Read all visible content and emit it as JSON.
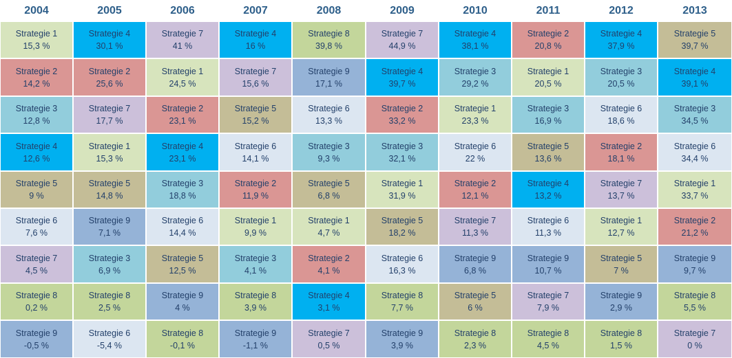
{
  "chart_data": {
    "type": "table",
    "years": [
      "2004",
      "2005",
      "2006",
      "2007",
      "2008",
      "2009",
      "2010",
      "2011",
      "2012",
      "2013"
    ],
    "strategy_colors": {
      "Strategie 1": "#d7e4bd",
      "Strategie 2": "#da9694",
      "Strategie 3": "#92cddc",
      "Strategie 4": "#00b0f0",
      "Strategie 5": "#c4bd97",
      "Strategie 6": "#dce6f1",
      "Strategie 7": "#ccc0da",
      "Strategie 8": "#c3d69b",
      "Strategie 9": "#95b3d7"
    },
    "columns": [
      [
        {
          "name": "Strategie 1",
          "value": "15,3 %"
        },
        {
          "name": "Strategie 2",
          "value": "14,2 %"
        },
        {
          "name": "Strategie 3",
          "value": "12,8 %"
        },
        {
          "name": "Strategie 4",
          "value": "12,6 %"
        },
        {
          "name": "Strategie 5",
          "value": "9 %"
        },
        {
          "name": "Strategie 6",
          "value": "7,6 %"
        },
        {
          "name": "Strategie 7",
          "value": "4,5 %"
        },
        {
          "name": "Strategie 8",
          "value": "0,2 %"
        },
        {
          "name": "Strategie 9",
          "value": "-0,5 %"
        }
      ],
      [
        {
          "name": "Strategie 4",
          "value": "30,1 %"
        },
        {
          "name": "Strategie 2",
          "value": "25,6 %"
        },
        {
          "name": "Strategie 7",
          "value": "17,7 %"
        },
        {
          "name": "Strategie 1",
          "value": "15,3 %"
        },
        {
          "name": "Strategie 5",
          "value": "14,8 %"
        },
        {
          "name": "Strategie 9",
          "value": "7,1 %"
        },
        {
          "name": "Strategie 3",
          "value": "6,9 %"
        },
        {
          "name": "Strategie 8",
          "value": "2,5 %"
        },
        {
          "name": "Strategie 6",
          "value": "-5,4 %"
        }
      ],
      [
        {
          "name": "Strategie 7",
          "value": "41 %"
        },
        {
          "name": "Strategie 1",
          "value": "24,5 %"
        },
        {
          "name": "Strategie 2",
          "value": "23,1 %"
        },
        {
          "name": "Strategie 4",
          "value": "23,1 %"
        },
        {
          "name": "Strategie 3",
          "value": "18,8 %"
        },
        {
          "name": "Strategie 6",
          "value": "14,4 %"
        },
        {
          "name": "Strategie 5",
          "value": "12,5 %"
        },
        {
          "name": "Strategie 9",
          "value": "4 %"
        },
        {
          "name": "Strategie 8",
          "value": "-0,1 %"
        }
      ],
      [
        {
          "name": "Strategie 4",
          "value": "16 %"
        },
        {
          "name": "Strategie 7",
          "value": "15,6 %"
        },
        {
          "name": "Strategie 5",
          "value": "15,2 %"
        },
        {
          "name": "Strategie 6",
          "value": "14,1 %"
        },
        {
          "name": "Strategie 2",
          "value": "11,9 %"
        },
        {
          "name": "Strategie 1",
          "value": "9,9 %"
        },
        {
          "name": "Strategie 3",
          "value": "4,1 %"
        },
        {
          "name": "Strategie 8",
          "value": "3,9 %"
        },
        {
          "name": "Strategie 9",
          "value": "-1,1 %"
        }
      ],
      [
        {
          "name": "Strategie 8",
          "value": "39,8 %"
        },
        {
          "name": "Strategie 9",
          "value": "17,1 %"
        },
        {
          "name": "Strategie 6",
          "value": "13,3 %"
        },
        {
          "name": "Strategie 3",
          "value": "9,3 %"
        },
        {
          "name": "Strategie 5",
          "value": "6,8 %"
        },
        {
          "name": "Strategie 1",
          "value": "4,7 %"
        },
        {
          "name": "Strategie 2",
          "value": "4,1 %"
        },
        {
          "name": "Strategie 4",
          "value": "3,1 %"
        },
        {
          "name": "Strategie 7",
          "value": "0,5 %"
        }
      ],
      [
        {
          "name": "Strategie 7",
          "value": "44,9 %"
        },
        {
          "name": "Strategie 4",
          "value": "39,7 %"
        },
        {
          "name": "Strategie 2",
          "value": "33,2 %"
        },
        {
          "name": "Strategie 3",
          "value": "32,1 %"
        },
        {
          "name": "Strategie 1",
          "value": "31,9 %"
        },
        {
          "name": "Strategie 5",
          "value": "18,2 %"
        },
        {
          "name": "Strategie 6",
          "value": "16,3 %"
        },
        {
          "name": "Strategie 8",
          "value": "7,7 %"
        },
        {
          "name": "Strategie 9",
          "value": "3,9 %"
        }
      ],
      [
        {
          "name": "Strategie 4",
          "value": "38,1 %"
        },
        {
          "name": "Strategie 3",
          "value": "29,2 %"
        },
        {
          "name": "Strategie 1",
          "value": "23,3 %"
        },
        {
          "name": "Strategie 6",
          "value": "22 %"
        },
        {
          "name": "Strategie 2",
          "value": "12,1 %"
        },
        {
          "name": "Strategie 7",
          "value": "11,3 %"
        },
        {
          "name": "Strategie 9",
          "value": "6,8 %"
        },
        {
          "name": "Strategie 5",
          "value": "6 %"
        },
        {
          "name": "Strategie 8",
          "value": "2,3 %"
        }
      ],
      [
        {
          "name": "Strategie 2",
          "value": "20,8 %"
        },
        {
          "name": "Strategie 1",
          "value": "20,5 %"
        },
        {
          "name": "Strategie 3",
          "value": "16,9 %"
        },
        {
          "name": "Strategie 5",
          "value": "13,6 %"
        },
        {
          "name": "Strategie 4",
          "value": "13,2 %"
        },
        {
          "name": "Strategie 6",
          "value": "11,3 %"
        },
        {
          "name": "Strategie 9",
          "value": "10,7 %"
        },
        {
          "name": "Strategie 7",
          "value": "7,9 %"
        },
        {
          "name": "Strategie 8",
          "value": "4,5 %"
        }
      ],
      [
        {
          "name": "Strategie 4",
          "value": "37,9 %"
        },
        {
          "name": "Strategie 3",
          "value": "20,5 %"
        },
        {
          "name": "Strategie 6",
          "value": "18,6 %"
        },
        {
          "name": "Strategie 2",
          "value": "18,1 %"
        },
        {
          "name": "Strategie 7",
          "value": "13,7 %"
        },
        {
          "name": "Strategie 1",
          "value": "12,7 %"
        },
        {
          "name": "Strategie 5",
          "value": "7 %"
        },
        {
          "name": "Strategie 9",
          "value": "2,9 %"
        },
        {
          "name": "Strategie 8",
          "value": "1,5 %"
        }
      ],
      [
        {
          "name": "Strategie 5",
          "value": "39,7 %"
        },
        {
          "name": "Strategie 4",
          "value": "39,1 %"
        },
        {
          "name": "Strategie 3",
          "value": "34,5 %"
        },
        {
          "name": "Strategie 6",
          "value": "34,4 %"
        },
        {
          "name": "Strategie 1",
          "value": "33,7 %"
        },
        {
          "name": "Strategie 2",
          "value": "21,2 %"
        },
        {
          "name": "Strategie 9",
          "value": "9,7 %"
        },
        {
          "name": "Strategie 8",
          "value": "5,5 %"
        },
        {
          "name": "Strategie 7",
          "value": "0 %"
        }
      ]
    ]
  }
}
